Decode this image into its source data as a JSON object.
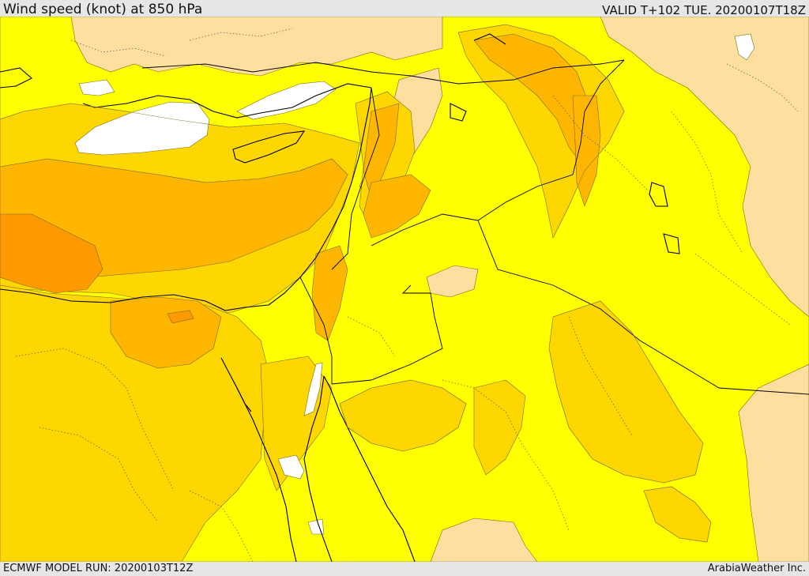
{
  "header": {
    "title": "Wind speed (knot) at 850 hPa",
    "valid": "VALID T+102 TUE. 20200107T18Z"
  },
  "footer": {
    "model_run": "ECMWF MODEL RUN: 20200103T12Z",
    "credit": "ArabiaWeather Inc."
  },
  "map": {
    "variable": "wind speed",
    "level": "850 hPa",
    "units": "knot",
    "colors": {
      "band_lightest": "#ffffff",
      "band_light": "#ffffa0",
      "band_yellow": "#ffff00",
      "band_gold": "#ffd700",
      "band_orange": "#ffb600",
      "band_darkorange": "#ff9a00",
      "land_low": "#ffdf9f",
      "coastline": "#000000"
    }
  }
}
